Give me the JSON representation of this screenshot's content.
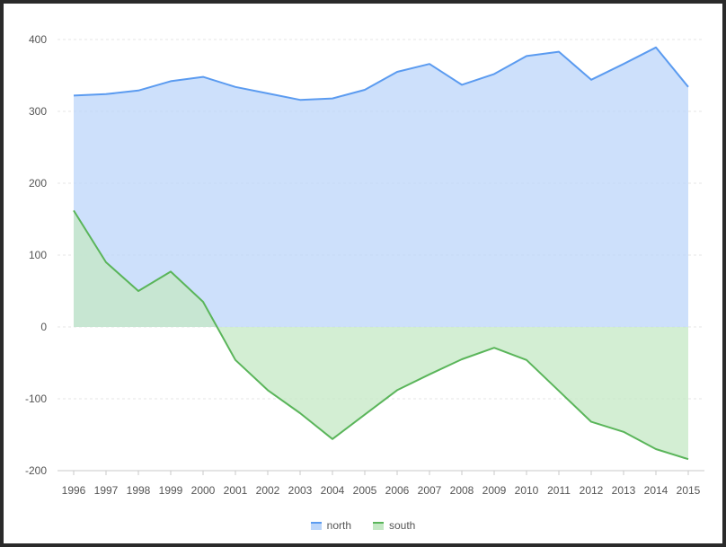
{
  "chart_data": {
    "type": "area",
    "x": [
      "1996",
      "1997",
      "1998",
      "1999",
      "2000",
      "2001",
      "2002",
      "2003",
      "2004",
      "2005",
      "2006",
      "2007",
      "2008",
      "2009",
      "2010",
      "2011",
      "2012",
      "2013",
      "2014",
      "2015"
    ],
    "series": [
      {
        "name": "north",
        "values": [
          322,
          324,
          329,
          342,
          348,
          334,
          325,
          316,
          318,
          330,
          355,
          366,
          337,
          352,
          377,
          383,
          344,
          366,
          389,
          334
        ],
        "line_color": "#5b9bf0",
        "fill_color": "#bcd6fa"
      },
      {
        "name": "south",
        "values": [
          162,
          90,
          50,
          77,
          35,
          -46,
          -88,
          -120,
          -156,
          -122,
          -88,
          -66,
          -45,
          -29,
          -46,
          -89,
          -132,
          -146,
          -170,
          -184
        ],
        "line_color": "#5ab55a",
        "fill_color": "#c4e8c4"
      }
    ],
    "ylim": [
      -200,
      400
    ],
    "yticks": [
      -200,
      -100,
      0,
      100,
      200,
      300,
      400
    ],
    "grid": true,
    "legend": "bottom-center"
  }
}
